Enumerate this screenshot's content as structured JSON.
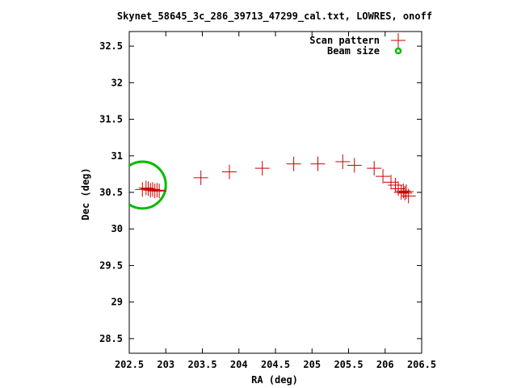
{
  "chart_data": {
    "type": "scatter",
    "title": "Skynet_58645_3c_286_39713_47299_cal.txt, LOWRES, onoff",
    "xlabel": "RA (deg)",
    "ylabel": "Dec (deg)",
    "xlim": [
      202.5,
      206.5
    ],
    "ylim": [
      28.3,
      32.7
    ],
    "xticks": [
      "202.5",
      "203",
      "203.5",
      "204",
      "204.5",
      "205",
      "205.5",
      "206",
      "206.5"
    ],
    "yticks": [
      "28.5",
      "29",
      "29.5",
      "30",
      "30.5",
      "31",
      "31.5",
      "32",
      "32.5"
    ],
    "grid": false,
    "legend_position": "top-right",
    "series": [
      {
        "name": "Scan pattern",
        "color": "#cc0000",
        "marker": "plus",
        "x": [
          202.68,
          202.73,
          202.76,
          202.79,
          202.82,
          202.85,
          202.88,
          202.91,
          203.48,
          203.87,
          204.32,
          204.75,
          205.08,
          205.42,
          205.58,
          205.85,
          205.97,
          206.08,
          206.14,
          206.18,
          206.22,
          206.25,
          206.27,
          206.29,
          206.32
        ],
        "y": [
          30.54,
          30.56,
          30.55,
          30.53,
          30.54,
          30.52,
          30.53,
          30.52,
          30.7,
          30.78,
          30.83,
          30.89,
          30.89,
          30.92,
          30.87,
          30.83,
          30.72,
          30.64,
          30.6,
          30.55,
          30.5,
          30.52,
          30.49,
          30.51,
          30.45
        ]
      },
      {
        "name": "Beam size",
        "color": "#00bb00",
        "marker": "circle",
        "x": [
          202.68
        ],
        "y": [
          30.6
        ],
        "radius": 0.32
      }
    ]
  }
}
